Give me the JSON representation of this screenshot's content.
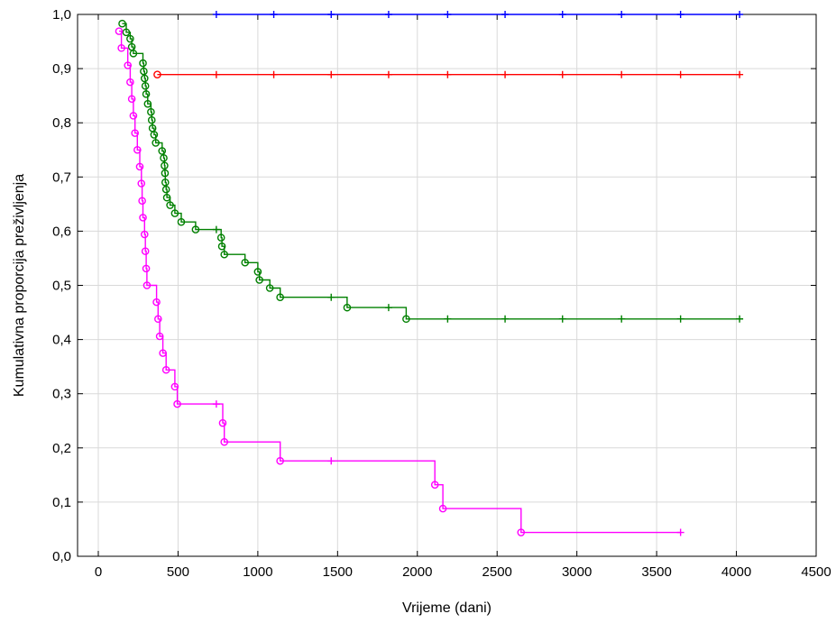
{
  "chart_data": {
    "type": "line",
    "title": "",
    "xlabel": "Vrijeme (dani)",
    "ylabel": "Kumulativna proporcija preživljenja",
    "xlim": [
      -130,
      4500
    ],
    "ylim": [
      0.0,
      1.0
    ],
    "x_ticks": [
      0,
      500,
      1000,
      1500,
      2000,
      2500,
      3000,
      3500,
      4000,
      4500
    ],
    "x_tick_labels": [
      "0",
      "500",
      "1000",
      "1500",
      "2000",
      "2500",
      "3000",
      "3500",
      "4000",
      "4500"
    ],
    "y_ticks": [
      0.0,
      0.1,
      0.2,
      0.3,
      0.4,
      0.5,
      0.6,
      0.7,
      0.8,
      0.9,
      1.0
    ],
    "y_tick_labels": [
      "0,0",
      "0,1",
      "0,2",
      "0,3",
      "0,4",
      "0,5",
      "0,6",
      "0,7",
      "0,8",
      "0,9",
      "1,0"
    ],
    "grid": true,
    "legend": "none",
    "series": [
      {
        "color": "#0000ff",
        "steps": [
          [
            740,
            1.0
          ],
          [
            4020,
            1.0
          ]
        ],
        "events": [],
        "censored": [
          [
            740,
            1.0
          ],
          [
            1100,
            1.0
          ],
          [
            1460,
            1.0
          ],
          [
            1820,
            1.0
          ],
          [
            2190,
            1.0
          ],
          [
            2550,
            1.0
          ],
          [
            2910,
            1.0
          ],
          [
            3280,
            1.0
          ],
          [
            3650,
            1.0
          ],
          [
            4020,
            1.0
          ]
        ]
      },
      {
        "color": "#ff0000",
        "steps": [
          [
            370,
            0.889
          ],
          [
            4020,
            0.889
          ]
        ],
        "events": [
          [
            370,
            0.889
          ]
        ],
        "censored": [
          [
            740,
            0.889
          ],
          [
            1100,
            0.889
          ],
          [
            1460,
            0.889
          ],
          [
            1820,
            0.889
          ],
          [
            2190,
            0.889
          ],
          [
            2550,
            0.889
          ],
          [
            2910,
            0.889
          ],
          [
            3280,
            0.889
          ],
          [
            3650,
            0.889
          ],
          [
            4020,
            0.889
          ]
        ]
      },
      {
        "color": "#008000",
        "steps": [
          [
            150,
            0.983
          ],
          [
            175,
            0.967
          ],
          [
            200,
            0.955
          ],
          [
            210,
            0.94
          ],
          [
            220,
            0.928
          ],
          [
            280,
            0.91
          ],
          [
            285,
            0.895
          ],
          [
            290,
            0.882
          ],
          [
            295,
            0.868
          ],
          [
            300,
            0.853
          ],
          [
            310,
            0.835
          ],
          [
            330,
            0.82
          ],
          [
            335,
            0.805
          ],
          [
            340,
            0.79
          ],
          [
            350,
            0.778
          ],
          [
            360,
            0.763
          ],
          [
            400,
            0.748
          ],
          [
            410,
            0.735
          ],
          [
            415,
            0.721
          ],
          [
            418,
            0.707
          ],
          [
            420,
            0.69
          ],
          [
            425,
            0.677
          ],
          [
            430,
            0.662
          ],
          [
            450,
            0.648
          ],
          [
            480,
            0.633
          ],
          [
            520,
            0.617
          ],
          [
            610,
            0.603
          ],
          [
            770,
            0.588
          ],
          [
            775,
            0.572
          ],
          [
            790,
            0.557
          ],
          [
            920,
            0.542
          ],
          [
            1000,
            0.525
          ],
          [
            1010,
            0.51
          ],
          [
            1075,
            0.495
          ],
          [
            1140,
            0.478
          ],
          [
            1560,
            0.459
          ],
          [
            1930,
            0.438
          ],
          [
            4020,
            0.438
          ]
        ],
        "events": [
          [
            150,
            0.983
          ],
          [
            175,
            0.967
          ],
          [
            200,
            0.955
          ],
          [
            210,
            0.94
          ],
          [
            220,
            0.928
          ],
          [
            280,
            0.91
          ],
          [
            285,
            0.895
          ],
          [
            290,
            0.882
          ],
          [
            295,
            0.868
          ],
          [
            300,
            0.853
          ],
          [
            310,
            0.835
          ],
          [
            330,
            0.82
          ],
          [
            335,
            0.805
          ],
          [
            340,
            0.79
          ],
          [
            350,
            0.778
          ],
          [
            360,
            0.763
          ],
          [
            400,
            0.748
          ],
          [
            410,
            0.735
          ],
          [
            415,
            0.721
          ],
          [
            418,
            0.707
          ],
          [
            420,
            0.69
          ],
          [
            425,
            0.677
          ],
          [
            430,
            0.662
          ],
          [
            450,
            0.648
          ],
          [
            480,
            0.633
          ],
          [
            520,
            0.617
          ],
          [
            610,
            0.603
          ],
          [
            770,
            0.588
          ],
          [
            775,
            0.572
          ],
          [
            790,
            0.557
          ],
          [
            920,
            0.542
          ],
          [
            1000,
            0.525
          ],
          [
            1010,
            0.51
          ],
          [
            1075,
            0.495
          ],
          [
            1140,
            0.478
          ],
          [
            1560,
            0.459
          ],
          [
            1930,
            0.438
          ]
        ],
        "censored": [
          [
            740,
            0.603
          ],
          [
            1460,
            0.478
          ],
          [
            1820,
            0.459
          ],
          [
            2190,
            0.438
          ],
          [
            2550,
            0.438
          ],
          [
            2910,
            0.438
          ],
          [
            3280,
            0.438
          ],
          [
            3650,
            0.438
          ],
          [
            4020,
            0.438
          ]
        ]
      },
      {
        "color": "#ff00ff",
        "steps": [
          [
            130,
            0.969
          ],
          [
            145,
            0.938
          ],
          [
            185,
            0.906
          ],
          [
            200,
            0.875
          ],
          [
            210,
            0.844
          ],
          [
            220,
            0.813
          ],
          [
            230,
            0.781
          ],
          [
            245,
            0.75
          ],
          [
            260,
            0.719
          ],
          [
            270,
            0.688
          ],
          [
            275,
            0.656
          ],
          [
            280,
            0.625
          ],
          [
            290,
            0.594
          ],
          [
            295,
            0.563
          ],
          [
            300,
            0.531
          ],
          [
            305,
            0.5
          ],
          [
            365,
            0.469
          ],
          [
            375,
            0.438
          ],
          [
            385,
            0.406
          ],
          [
            405,
            0.375
          ],
          [
            425,
            0.344
          ],
          [
            480,
            0.313
          ],
          [
            495,
            0.281
          ],
          [
            780,
            0.246
          ],
          [
            790,
            0.211
          ],
          [
            1140,
            0.176
          ],
          [
            2110,
            0.132
          ],
          [
            2160,
            0.088
          ],
          [
            2650,
            0.044
          ],
          [
            3650,
            0.044
          ]
        ],
        "events": [
          [
            130,
            0.969
          ],
          [
            145,
            0.938
          ],
          [
            185,
            0.906
          ],
          [
            200,
            0.875
          ],
          [
            210,
            0.844
          ],
          [
            220,
            0.813
          ],
          [
            230,
            0.781
          ],
          [
            245,
            0.75
          ],
          [
            260,
            0.719
          ],
          [
            270,
            0.688
          ],
          [
            275,
            0.656
          ],
          [
            280,
            0.625
          ],
          [
            290,
            0.594
          ],
          [
            295,
            0.563
          ],
          [
            300,
            0.531
          ],
          [
            305,
            0.5
          ],
          [
            365,
            0.469
          ],
          [
            375,
            0.438
          ],
          [
            385,
            0.406
          ],
          [
            405,
            0.375
          ],
          [
            425,
            0.344
          ],
          [
            480,
            0.313
          ],
          [
            495,
            0.281
          ],
          [
            780,
            0.246
          ],
          [
            790,
            0.211
          ],
          [
            1140,
            0.176
          ],
          [
            2110,
            0.132
          ],
          [
            2160,
            0.088
          ],
          [
            2650,
            0.044
          ]
        ],
        "censored": [
          [
            740,
            0.281
          ],
          [
            1460,
            0.176
          ],
          [
            3650,
            0.044
          ]
        ]
      }
    ]
  }
}
